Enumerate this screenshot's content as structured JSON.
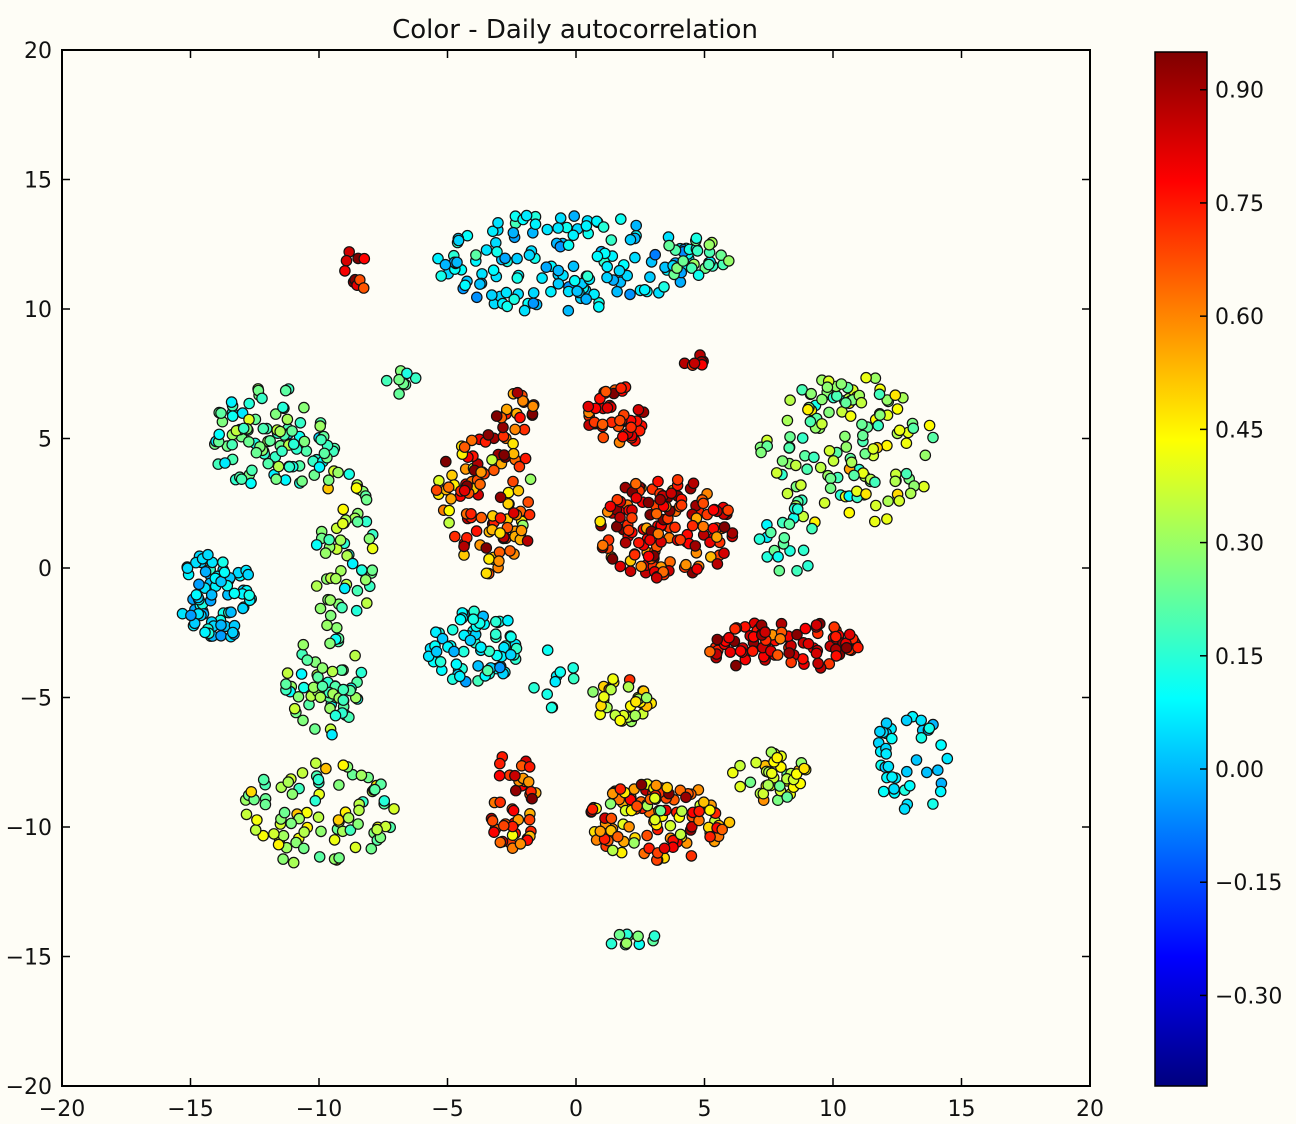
{
  "chart_data": {
    "type": "scatter",
    "title": "Color - Daily autocorrelation",
    "xlabel": "",
    "ylabel": "",
    "xlim": [
      -20,
      20
    ],
    "ylim": [
      -20,
      20
    ],
    "x_ticks": [
      -20,
      -15,
      -10,
      -5,
      0,
      5,
      10,
      15,
      20
    ],
    "y_ticks": [
      20,
      15,
      10,
      5,
      0,
      -5,
      -10,
      -15,
      -20
    ],
    "x_tick_labels": [
      "−20",
      "−15",
      "−10",
      "−5",
      "0",
      "5",
      "10",
      "15",
      "20"
    ],
    "y_tick_labels": [
      "20",
      "15",
      "10",
      "5",
      "0",
      "−5",
      "−10",
      "−15",
      "−20"
    ],
    "grid": false,
    "colorbar": {
      "colormap": "jet",
      "range": [
        -0.42,
        0.95
      ],
      "ticks": [
        0.9,
        0.75,
        0.6,
        0.45,
        0.3,
        0.15,
        0.0,
        -0.15,
        -0.3
      ],
      "tick_labels": [
        "0.90",
        "0.75",
        "0.60",
        "0.45",
        "0.30",
        "0.15",
        "0.00",
        "−0.15",
        "−0.30"
      ]
    },
    "clusters": [
      {
        "cx": -8.5,
        "cy": 11.5,
        "rx": 0.5,
        "ry": 1.0,
        "n": 10,
        "value": 0.8,
        "spread": 0.12
      },
      {
        "cx": -0.5,
        "cy": 11.8,
        "rx": 5.0,
        "ry": 2.0,
        "n": 150,
        "value": 0.06,
        "spread": 0.07
      },
      {
        "cx": 4.5,
        "cy": 12.0,
        "rx": 1.5,
        "ry": 0.8,
        "n": 25,
        "value": 0.2,
        "spread": 0.08
      },
      {
        "cx": -11.8,
        "cy": 5.0,
        "rx": 2.5,
        "ry": 2.0,
        "n": 100,
        "value": 0.2,
        "spread": 0.1
      },
      {
        "cx": -9.0,
        "cy": 0.5,
        "rx": 1.2,
        "ry": 3.5,
        "n": 60,
        "value": 0.28,
        "spread": 0.12
      },
      {
        "cx": -6.8,
        "cy": 7.2,
        "rx": 0.6,
        "ry": 0.5,
        "n": 8,
        "value": 0.22,
        "spread": 0.06
      },
      {
        "cx": -14.0,
        "cy": -1.0,
        "rx": 1.5,
        "ry": 1.8,
        "n": 75,
        "value": 0.05,
        "spread": 0.06
      },
      {
        "cx": -9.8,
        "cy": -4.5,
        "rx": 1.5,
        "ry": 2.0,
        "n": 60,
        "value": 0.22,
        "spread": 0.1
      },
      {
        "cx": -10.0,
        "cy": -9.5,
        "rx": 3.0,
        "ry": 2.0,
        "n": 85,
        "value": 0.3,
        "spread": 0.12
      },
      {
        "cx": -3.5,
        "cy": 2.5,
        "rx": 2.0,
        "ry": 2.8,
        "n": 110,
        "value": 0.65,
        "spread": 0.2
      },
      {
        "cx": -2.3,
        "cy": 6.0,
        "rx": 0.8,
        "ry": 0.8,
        "n": 18,
        "value": 0.75,
        "spread": 0.15
      },
      {
        "cx": 1.5,
        "cy": 5.8,
        "rx": 1.2,
        "ry": 1.3,
        "n": 45,
        "value": 0.75,
        "spread": 0.1
      },
      {
        "cx": 3.5,
        "cy": 1.5,
        "rx": 2.7,
        "ry": 2.0,
        "n": 150,
        "value": 0.78,
        "spread": 0.15
      },
      {
        "cx": -4.0,
        "cy": -3.0,
        "rx": 1.8,
        "ry": 1.5,
        "n": 70,
        "value": 0.1,
        "spread": 0.08
      },
      {
        "cx": 1.8,
        "cy": -5.0,
        "rx": 1.2,
        "ry": 1.0,
        "n": 35,
        "value": 0.45,
        "spread": 0.15
      },
      {
        "cx": -0.8,
        "cy": -4.5,
        "rx": 1.0,
        "ry": 1.5,
        "n": 10,
        "value": 0.1,
        "spread": 0.05
      },
      {
        "cx": -2.5,
        "cy": -9.0,
        "rx": 1.0,
        "ry": 2.0,
        "n": 45,
        "value": 0.7,
        "spread": 0.15
      },
      {
        "cx": 3.2,
        "cy": -9.8,
        "rx": 2.8,
        "ry": 1.5,
        "n": 120,
        "value": 0.6,
        "spread": 0.2
      },
      {
        "cx": 7.5,
        "cy": -8.0,
        "rx": 1.5,
        "ry": 1.0,
        "n": 40,
        "value": 0.4,
        "spread": 0.1
      },
      {
        "cx": 8.0,
        "cy": -3.0,
        "rx": 3.0,
        "ry": 1.0,
        "n": 90,
        "value": 0.8,
        "spread": 0.12
      },
      {
        "cx": 10.5,
        "cy": 4.5,
        "rx": 3.5,
        "ry": 3.0,
        "n": 140,
        "value": 0.32,
        "spread": 0.12
      },
      {
        "cx": 8.2,
        "cy": 1.0,
        "rx": 1.2,
        "ry": 1.5,
        "n": 20,
        "value": 0.15,
        "spread": 0.08
      },
      {
        "cx": 13.0,
        "cy": -7.5,
        "rx": 1.5,
        "ry": 2.0,
        "n": 40,
        "value": 0.05,
        "spread": 0.05
      },
      {
        "cx": 2.0,
        "cy": -14.3,
        "rx": 1.2,
        "ry": 0.3,
        "n": 10,
        "value": 0.2,
        "spread": 0.1
      },
      {
        "cx": 4.6,
        "cy": 8.0,
        "rx": 0.6,
        "ry": 0.3,
        "n": 7,
        "value": 0.8,
        "spread": 0.1
      }
    ]
  }
}
